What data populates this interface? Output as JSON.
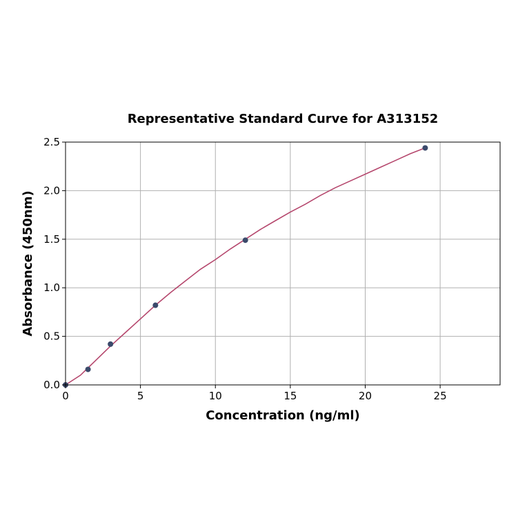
{
  "chart_data": {
    "type": "scatter",
    "title": "Representative Standard Curve for A313152",
    "xlabel": "Concentration (ng/ml)",
    "ylabel": "Absorbance (450nm)",
    "xlim": [
      0,
      29
    ],
    "ylim": [
      0,
      2.5
    ],
    "xticks": [
      0,
      5,
      10,
      15,
      20,
      25
    ],
    "yticks": [
      0.0,
      0.5,
      1.0,
      1.5,
      2.0,
      2.5
    ],
    "xtick_labels": [
      "0",
      "5",
      "10",
      "15",
      "20",
      "25"
    ],
    "ytick_labels": [
      "0.0",
      "0.5",
      "1.0",
      "1.5",
      "2.0",
      "2.5"
    ],
    "grid": true,
    "legend": "none",
    "points": {
      "x": [
        0,
        1.5,
        3,
        6,
        12,
        24
      ],
      "y": [
        0.0,
        0.16,
        0.42,
        0.82,
        1.49,
        2.44
      ],
      "color": "#3b4a6b"
    },
    "fit_curve": {
      "x": [
        0,
        1,
        2,
        3,
        4,
        5,
        6,
        7,
        8,
        9,
        10,
        11,
        12,
        13,
        14,
        15,
        16,
        17,
        18,
        19,
        20,
        21,
        22,
        23,
        24
      ],
      "y": [
        0.0,
        0.1,
        0.25,
        0.4,
        0.54,
        0.68,
        0.82,
        0.95,
        1.07,
        1.19,
        1.29,
        1.4,
        1.5,
        1.6,
        1.69,
        1.78,
        1.86,
        1.95,
        2.03,
        2.1,
        2.17,
        2.24,
        2.31,
        2.38,
        2.44
      ],
      "color": "#b5476d"
    }
  }
}
